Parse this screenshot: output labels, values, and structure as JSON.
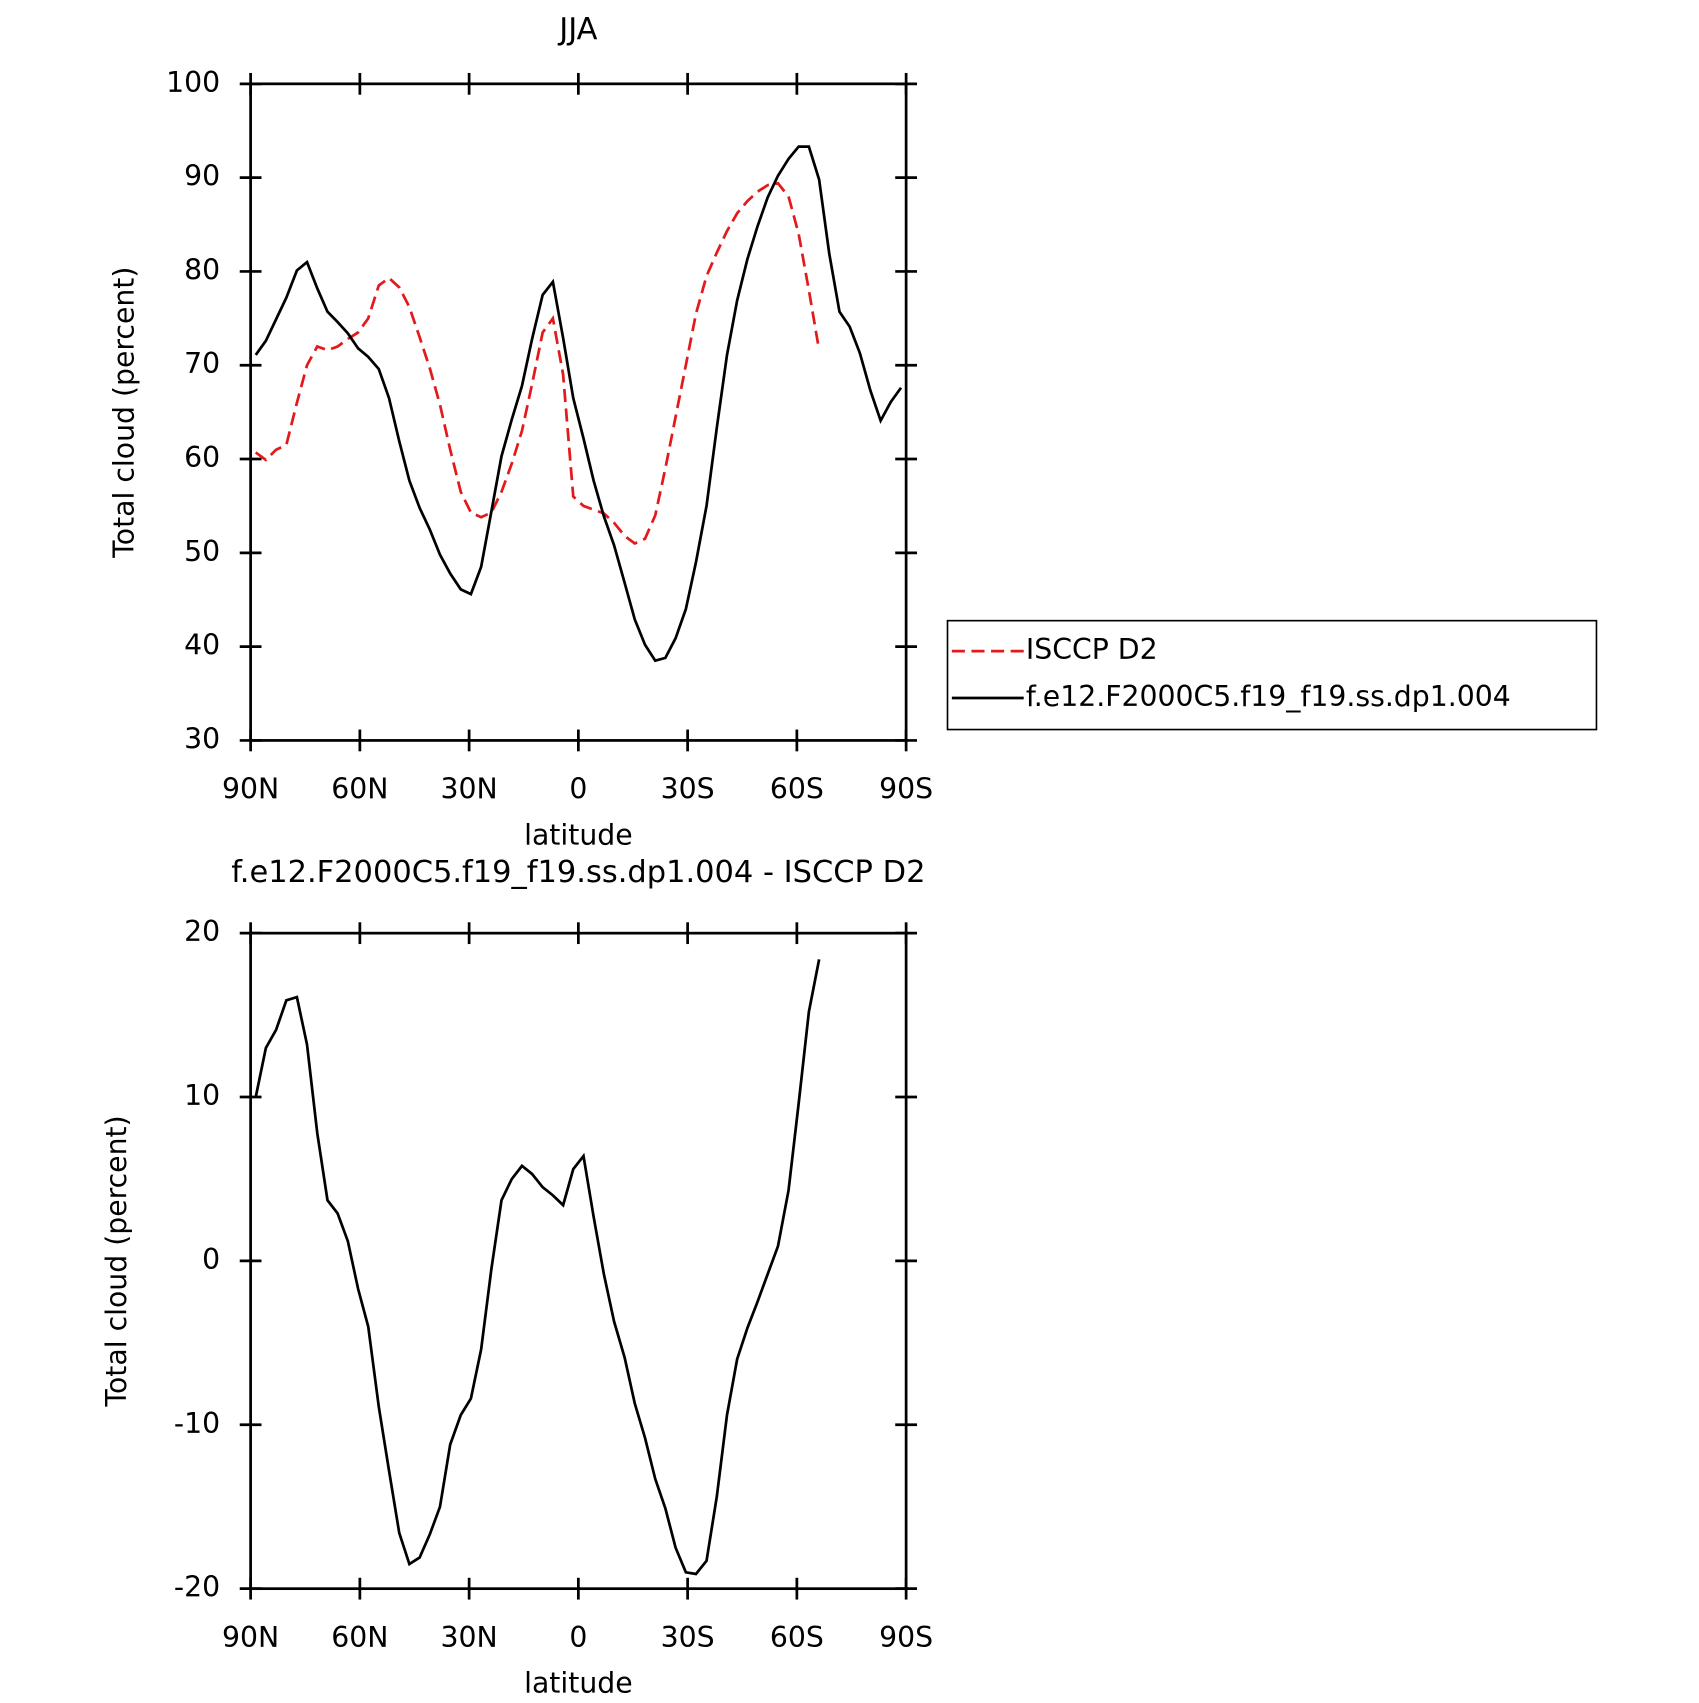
{
  "chart_data": [
    {
      "type": "line",
      "title": "JJA",
      "xlabel": "latitude",
      "ylabel": "Total cloud (percent)",
      "x": [
        88.6,
        85.8,
        83.0,
        80.2,
        77.3,
        74.5,
        71.7,
        68.9,
        66.1,
        63.3,
        60.5,
        57.7,
        54.8,
        52.0,
        49.2,
        46.4,
        43.6,
        40.8,
        38.0,
        35.2,
        32.3,
        29.5,
        26.7,
        23.9,
        21.1,
        18.3,
        15.5,
        12.7,
        9.8,
        7.0,
        4.2,
        1.4,
        -1.4,
        -4.2,
        -7.0,
        -9.8,
        -12.7,
        -15.5,
        -18.3,
        -21.1,
        -23.9,
        -26.7,
        -29.5,
        -32.3,
        -35.2,
        -38.0,
        -40.8,
        -43.6,
        -46.4,
        -49.2,
        -52.0,
        -54.8,
        -57.7,
        -60.5,
        -63.3,
        -66.1,
        -68.9,
        -71.7,
        -74.5,
        -77.3,
        -80.2,
        -83.0,
        -85.8,
        -88.6
      ],
      "series": [
        {
          "name": "ISCCP D2",
          "color": "#e31a1c",
          "dash": true,
          "values": [
            60.7,
            59.9,
            61,
            61.5,
            66,
            70,
            72,
            71.6,
            72,
            72.8,
            73.5,
            75,
            78.5,
            79.3,
            78.3,
            76.2,
            73,
            69.7,
            65.8,
            61,
            56.5,
            54.3,
            53.8,
            54.3,
            56.5,
            59.5,
            63,
            68,
            73.5,
            75,
            69,
            56,
            55,
            54.6,
            54.2,
            53.2,
            51.8,
            51,
            51.5,
            54,
            59,
            64.5,
            70,
            75.5,
            79.5,
            82,
            84.3,
            86.2,
            87.5,
            88.5,
            89.2,
            89.4,
            88,
            84,
            78,
            71.6,
            null,
            null,
            null,
            null,
            null,
            null,
            null,
            null
          ]
        },
        {
          "name": "f.e12.F2000C5.f19_f19.ss.dp1.004",
          "color": "#000000",
          "dash": false,
          "values": [
            71.1,
            72.6,
            74.9,
            77.2,
            80.1,
            81.0,
            78.2,
            75.7,
            74.6,
            73.4,
            71.8,
            70.9,
            69.6,
            66.5,
            61.9,
            57.7,
            54.8,
            52.5,
            49.8,
            47.8,
            46.1,
            45.6,
            48.5,
            54.4,
            60.3,
            64.2,
            67.8,
            72.8,
            77.5,
            78.9,
            72.9,
            66.5,
            62.2,
            57.7,
            53.9,
            50.8,
            46.8,
            42.9,
            40.2,
            38.5,
            38.8,
            40.9,
            44.0,
            49.0,
            55.0,
            63.3,
            71.1,
            76.9,
            81.3,
            84.8,
            87.9,
            90.2,
            92.0,
            93.3,
            93.3,
            89.8,
            81.9,
            75.7,
            74.1,
            71.3,
            67.3,
            64.1,
            66.1,
            67.6
          ]
        }
      ],
      "xlim": [
        90,
        -90
      ],
      "xticks": [
        {
          "value": 90,
          "label": "90N"
        },
        {
          "value": 60,
          "label": "60N"
        },
        {
          "value": 30,
          "label": "30N"
        },
        0,
        {
          "value": -30,
          "label": "30S"
        },
        {
          "value": -60,
          "label": "60S"
        },
        {
          "value": -90,
          "label": "90S"
        }
      ],
      "ylim": [
        30,
        100
      ],
      "yticks": [
        30,
        40,
        50,
        60,
        70,
        80,
        90,
        100
      ],
      "legend": "right"
    },
    {
      "type": "line",
      "title": "f.e12.F2000C5.f19_f19.ss.dp1.004 - ISCCP D2",
      "xlabel": "latitude",
      "ylabel": "Total cloud (percent)",
      "x": [
        88.6,
        85.8,
        83.0,
        80.2,
        77.3,
        74.5,
        71.7,
        68.9,
        66.1,
        63.3,
        60.5,
        57.7,
        54.8,
        52.0,
        49.2,
        46.4,
        43.6,
        40.8,
        38.0,
        35.2,
        32.3,
        29.5,
        26.7,
        23.9,
        21.1,
        18.3,
        15.5,
        12.7,
        9.8,
        7.0,
        4.2,
        1.4,
        -1.4,
        -4.2,
        -7.0,
        -9.8,
        -12.7,
        -15.5,
        -18.3,
        -21.1,
        -23.9,
        -26.7,
        -29.5,
        -32.3,
        -35.2,
        -38.0,
        -40.8,
        -43.6,
        -46.4,
        -49.2,
        -52.0,
        -54.8,
        -57.7,
        -60.5,
        -63.3,
        -66.1,
        -68.9,
        -71.7,
        -74.5,
        -77.3,
        -80.2,
        -83.0,
        -85.8,
        -88.6
      ],
      "series": [
        {
          "color": "#000000",
          "dash": false,
          "values": [
            10.0,
            13.0,
            14.1,
            15.9,
            16.1,
            13.2,
            7.8,
            3.7,
            2.9,
            1.2,
            -1.7,
            -4.0,
            -8.9,
            -12.8,
            -16.6,
            -18.5,
            -18.1,
            -16.7,
            -15.0,
            -11.2,
            -9.4,
            -8.4,
            -5.4,
            -0.5,
            3.7,
            5.0,
            5.8,
            5.3,
            4.5,
            4.0,
            3.4,
            5.6,
            6.4,
            2.7,
            -0.8,
            -3.7,
            -5.9,
            -8.7,
            -10.8,
            -13.3,
            -15.1,
            -17.5,
            -19.0,
            -19.1,
            -18.3,
            -14.4,
            -9.4,
            -6.0,
            -4.1,
            -2.5,
            -0.8,
            0.9,
            4.3,
            9.6,
            15.2,
            18.4,
            null,
            null,
            null,
            null,
            null,
            null,
            null,
            null
          ]
        }
      ],
      "xlim": [
        90,
        -90
      ],
      "xticks": [
        {
          "value": 90,
          "label": "90N"
        },
        {
          "value": 60,
          "label": "60N"
        },
        {
          "value": 30,
          "label": "30N"
        },
        0,
        {
          "value": -30,
          "label": "30S"
        },
        {
          "value": -60,
          "label": "60S"
        },
        {
          "value": -90,
          "label": "90S"
        }
      ],
      "ylim": [
        -20,
        20
      ],
      "yticks": [
        -20,
        -10,
        0,
        10,
        20
      ]
    }
  ]
}
